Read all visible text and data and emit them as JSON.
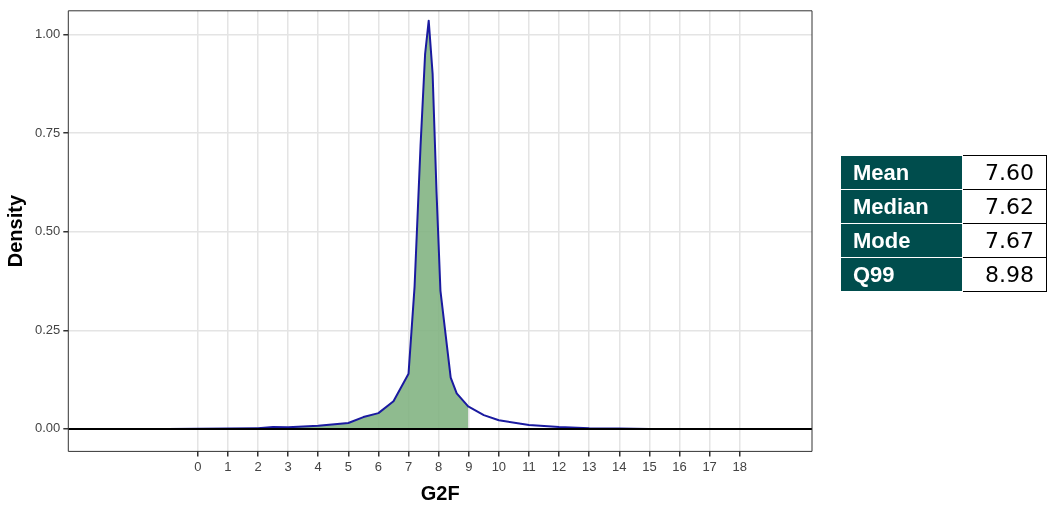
{
  "chart_data": [
    {
      "type": "line",
      "xlabel": "G2F",
      "ylabel": "Density",
      "xlim": [
        -4.3,
        20.4
      ],
      "xticks": [
        0,
        1,
        2,
        3,
        4,
        5,
        6,
        7,
        8,
        9,
        10,
        11,
        12,
        13,
        14,
        15,
        16,
        17,
        18
      ],
      "ylim": [
        -0.057,
        1.06
      ],
      "yticks": [
        {
          "value": 0,
          "label": "0.00"
        },
        {
          "value": 0.25,
          "label": "0.25"
        },
        {
          "value": 0.5,
          "label": "0.50"
        },
        {
          "value": 0.75,
          "label": "0.75"
        },
        {
          "value": 1,
          "label": "1.00"
        }
      ],
      "grid": true,
      "legend": false,
      "marker": "none",
      "ref_lines": [
        {
          "axis": "y",
          "value": 0,
          "color": "#000000"
        }
      ],
      "series": [
        {
          "type": "area",
          "color": "#7fb27f",
          "x": [
            2,
            2.5,
            3,
            4,
            5,
            5.5,
            6,
            6.5,
            7,
            7.2,
            7.4,
            7.55,
            7.67,
            7.8,
            7.93,
            8.06,
            8.4,
            8.6,
            8.98
          ],
          "values": [
            0.002,
            0.005,
            0.004,
            0.008,
            0.015,
            0.03,
            0.04,
            0.07,
            0.14,
            0.36,
            0.72,
            0.95,
            1.035,
            0.9,
            0.6,
            0.35,
            0.13,
            0.09,
            0.057
          ]
        },
        {
          "type": "line",
          "color": "#1a1aa0",
          "x": [
            -1,
            2,
            2.5,
            3,
            4,
            5,
            5.5,
            6,
            6.5,
            7,
            7.2,
            7.4,
            7.55,
            7.67,
            7.8,
            7.93,
            8.06,
            8.4,
            8.6,
            8.98,
            9.5,
            10,
            11,
            12,
            13,
            14,
            15,
            20
          ],
          "values": [
            0,
            0.002,
            0.005,
            0.004,
            0.008,
            0.015,
            0.03,
            0.04,
            0.07,
            0.14,
            0.36,
            0.72,
            0.95,
            1.035,
            0.9,
            0.6,
            0.35,
            0.13,
            0.09,
            0.057,
            0.035,
            0.022,
            0.01,
            0.005,
            0.002,
            0.001,
            0,
            0
          ]
        }
      ]
    },
    {
      "type": "other",
      "categories": [
        "Mean",
        "Median",
        "Mode",
        "Q99"
      ],
      "values": [
        7.6,
        7.62,
        7.67,
        8.98
      ],
      "value_labels": [
        "7.60",
        "7.62",
        "7.67",
        "8.98"
      ],
      "data_labels": true
    }
  ]
}
